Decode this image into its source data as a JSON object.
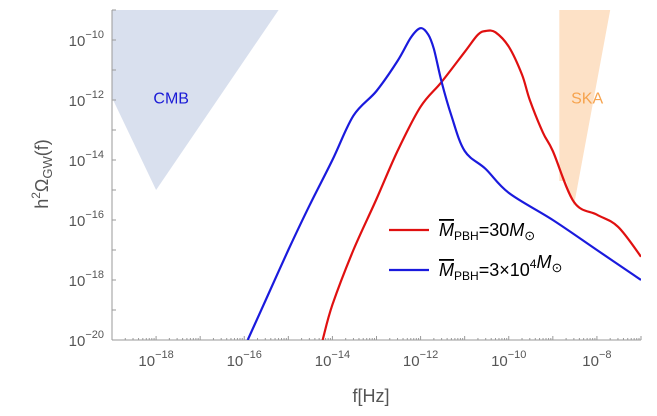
{
  "chart_data": {
    "type": "line",
    "xscale": "log",
    "yscale": "log",
    "xlabel_base": "f[Hz]",
    "ylabel": {
      "prefix": "h",
      "sup": "2",
      "omega": "Ω",
      "sub": "GW",
      "suffix": "(f)"
    },
    "xlim": [
      1e-19,
      1e-07
    ],
    "ylim": [
      1e-20,
      1e-09
    ],
    "x_ticks": [
      {
        "value": 1e-18,
        "base": "10",
        "exp": "−18"
      },
      {
        "value": 1e-16,
        "base": "10",
        "exp": "−16"
      },
      {
        "value": 1e-14,
        "base": "10",
        "exp": "−14"
      },
      {
        "value": 1e-12,
        "base": "10",
        "exp": "−12"
      },
      {
        "value": 1e-10,
        "base": "10",
        "exp": "−10"
      },
      {
        "value": 1e-08,
        "base": "10",
        "exp": "−8"
      }
    ],
    "y_ticks": [
      {
        "value": 1e-20,
        "base": "10",
        "exp": "−20"
      },
      {
        "value": 1e-18,
        "base": "10",
        "exp": "−18"
      },
      {
        "value": 1e-16,
        "base": "10",
        "exp": "−16"
      },
      {
        "value": 1e-14,
        "base": "10",
        "exp": "−14"
      },
      {
        "value": 1e-12,
        "base": "10",
        "exp": "−12"
      },
      {
        "value": 1e-10,
        "base": "10",
        "exp": "−10"
      }
    ],
    "regions": [
      {
        "label": "CMB",
        "color": "#d9e0ee",
        "text_color": "#1a1ad6",
        "label_at": [
          2.2e-18,
          1.2e-12
        ],
        "polygon": [
          [
            1e-19,
            1e-09
          ],
          [
            1e-19,
            1.2e-12
          ],
          [
            1e-18,
            1e-15
          ],
          [
            6e-16,
            1e-09
          ]
        ]
      },
      {
        "label": "SKA",
        "color": "#fde1c6",
        "text_color": "#f6a34e",
        "label_at": [
          6e-09,
          1.2e-12
        ],
        "polygon": [
          [
            1.4e-09,
            1e-09
          ],
          [
            1.4e-09,
            2e-15
          ],
          [
            2e-09,
            2e-15
          ],
          [
            3e-09,
            3e-16
          ],
          [
            2e-08,
            1e-09
          ]
        ]
      }
    ],
    "series": [
      {
        "name": "M̄_PBH=30M⊙",
        "legend": {
          "m": "M",
          "sub": "PBH",
          "eq": "=30",
          "msun": "M",
          "sun": "⊙"
        },
        "color": "#e01010",
        "x": [
          6e-15,
          1e-14,
          3e-14,
          1e-13,
          3e-13,
          1e-12,
          3e-12,
          1e-11,
          2e-11,
          3e-11,
          5e-11,
          1e-10,
          2e-10,
          3e-10,
          6e-10,
          1e-09,
          3e-09,
          1e-08,
          3e-08,
          1e-07
        ],
        "y": [
          1e-20,
          1.5e-19,
          1e-17,
          5e-16,
          2e-14,
          6e-13,
          4e-12,
          4e-11,
          1.5e-10,
          2e-10,
          1.8e-10,
          6e-11,
          7e-12,
          1e-12,
          8e-14,
          2e-14,
          4e-16,
          1.5e-16,
          6e-17,
          6e-18
        ]
      },
      {
        "name": "M̄_PBH=3×10⁴M⊙",
        "legend": {
          "m": "M",
          "sub": "PBH",
          "eq": "=3×10",
          "sup": "4",
          "msun": "M",
          "sun": "⊙"
        },
        "color": "#1a1add",
        "x": [
          1.2e-16,
          3e-16,
          1e-15,
          3e-15,
          1e-14,
          3e-14,
          1e-13,
          3e-13,
          6e-13,
          1e-12,
          1.5e-12,
          2e-12,
          3e-12,
          5e-12,
          1e-11,
          3e-11,
          1e-10,
          1e-09,
          1e-08,
          1e-07
        ],
        "y": [
          1e-20,
          2e-19,
          1e-17,
          3e-16,
          1e-14,
          3e-13,
          2e-12,
          2e-11,
          1.2e-10,
          2.5e-10,
          1.5e-10,
          5e-11,
          4e-12,
          3e-13,
          2e-14,
          5e-15,
          8e-16,
          1e-16,
          1e-17,
          1e-18
        ]
      }
    ]
  }
}
